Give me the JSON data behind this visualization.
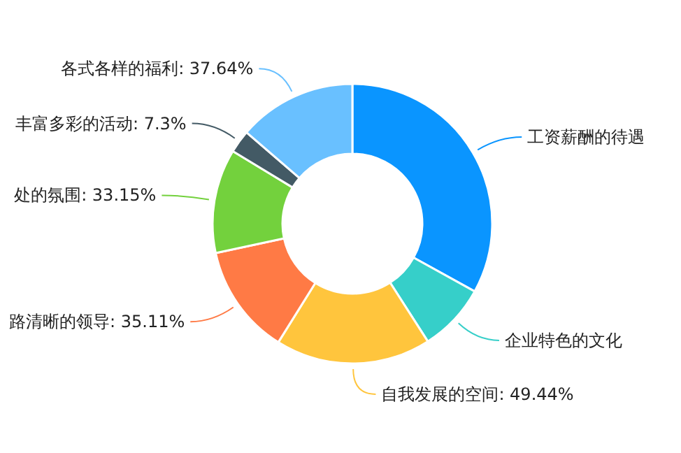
{
  "chart_data": {
    "type": "donut",
    "categories": [
      "工资薪酬的待遇",
      "企业特色的文化",
      "自我发展的空间",
      "路清晰的领导",
      "处的氛围",
      "丰富多彩的活动",
      "各式各样的福利"
    ],
    "values": [
      91,
      21.7,
      49.44,
      35.11,
      33.15,
      7.3,
      37.64
    ],
    "value_labels": [
      null,
      null,
      "49.44%",
      "35.11%",
      "33.15%",
      "7.3%",
      "37.64%"
    ],
    "colors": [
      "#0a95ff",
      "#36cfc9",
      "#ffc53d",
      "#ff7a45",
      "#73d13d",
      "#435a65",
      "#69c0ff"
    ]
  }
}
